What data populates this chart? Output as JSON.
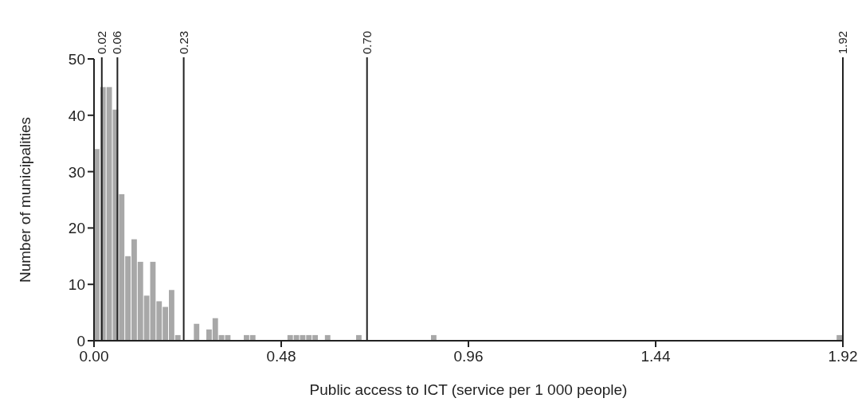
{
  "chart_data": {
    "type": "histogram",
    "xlabel": "Public access to ICT (service per 1 000 people)",
    "ylabel": "Number of municipalities",
    "color": "#a8a8a8",
    "bins": [
      0,
      0.016,
      0.032,
      0.048,
      0.064,
      0.08,
      0.096,
      0.112,
      0.128,
      0.144,
      0.16,
      0.176,
      0.192,
      0.208,
      0.224,
      0.24,
      0.256,
      0.272,
      0.288,
      0.304,
      0.32,
      0.336,
      0.352,
      0.368,
      0.384,
      0.4,
      0.416,
      0.432,
      0.448,
      0.464,
      0.48,
      0.496,
      0.512,
      0.528,
      0.544,
      0.56,
      0.576,
      0.592,
      0.608,
      0.624,
      0.64,
      0.656,
      0.672,
      0.688,
      0.704,
      0.72,
      0.736,
      0.752,
      0.768,
      0.784,
      0.8,
      0.816,
      0.832,
      0.848,
      0.864,
      0.88,
      0.896,
      0.912,
      0.928,
      0.944,
      0.96,
      0.976,
      0.992,
      1.008,
      1.024,
      1.04,
      1.056,
      1.072,
      1.088,
      1.104,
      1.12,
      1.136,
      1.152,
      1.168,
      1.184,
      1.2,
      1.216,
      1.232,
      1.248,
      1.264,
      1.28,
      1.296,
      1.312,
      1.328,
      1.344,
      1.36,
      1.376,
      1.392,
      1.408,
      1.424,
      1.44,
      1.456,
      1.472,
      1.488,
      1.504,
      1.52,
      1.536,
      1.552,
      1.568,
      1.584,
      1.6,
      1.616,
      1.632,
      1.648,
      1.664,
      1.68,
      1.696,
      1.712,
      1.728,
      1.744,
      1.76,
      1.776,
      1.792,
      1.808,
      1.824,
      1.84,
      1.856,
      1.872,
      1.888,
      1.904,
      1.92
    ],
    "values": [
      34,
      45,
      45,
      41,
      26,
      15,
      18,
      14,
      8,
      14,
      7,
      6,
      9,
      1,
      0,
      0,
      3,
      0,
      2,
      4,
      1,
      1,
      0,
      0,
      1,
      1,
      0,
      0,
      0,
      0,
      0,
      1,
      1,
      1,
      1,
      1,
      0,
      1,
      0,
      0,
      0,
      0,
      1,
      0,
      0,
      0,
      0,
      0,
      0,
      0,
      0,
      0,
      0,
      0,
      1,
      0,
      0,
      0,
      0,
      0,
      0,
      0,
      0,
      0,
      0,
      0,
      0,
      0,
      0,
      0,
      0,
      0,
      0,
      0,
      0,
      0,
      0,
      0,
      0,
      0,
      0,
      0,
      0,
      0,
      0,
      0,
      0,
      0,
      0,
      0,
      0,
      0,
      0,
      0,
      0,
      0,
      0,
      0,
      0,
      0,
      0,
      0,
      0,
      0,
      0,
      0,
      0,
      0,
      0,
      0,
      0,
      0,
      0,
      0,
      0,
      0,
      0,
      0,
      0,
      1
    ],
    "xlim": [
      0,
      1.92
    ],
    "ylim": [
      0,
      50
    ],
    "xticks": [
      {
        "value": 0,
        "label": "0.00"
      },
      0.48,
      0.96,
      1.44,
      1.92
    ],
    "yticks": [
      0,
      10,
      20,
      30,
      40,
      50
    ],
    "grid": false,
    "ref_lines": [
      {
        "axis": "x",
        "value": 0.02,
        "label": "0.02",
        "color": "#222222"
      },
      {
        "axis": "x",
        "value": 0.06,
        "label": "0.06",
        "color": "#222222"
      },
      {
        "axis": "x",
        "value": 0.23,
        "label": "0.23",
        "color": "#222222"
      },
      {
        "axis": "x",
        "value": 0.7,
        "label": "0.70",
        "color": "#222222"
      },
      {
        "axis": "x",
        "value": 1.92,
        "label": "1.92",
        "color": "#222222"
      }
    ]
  }
}
